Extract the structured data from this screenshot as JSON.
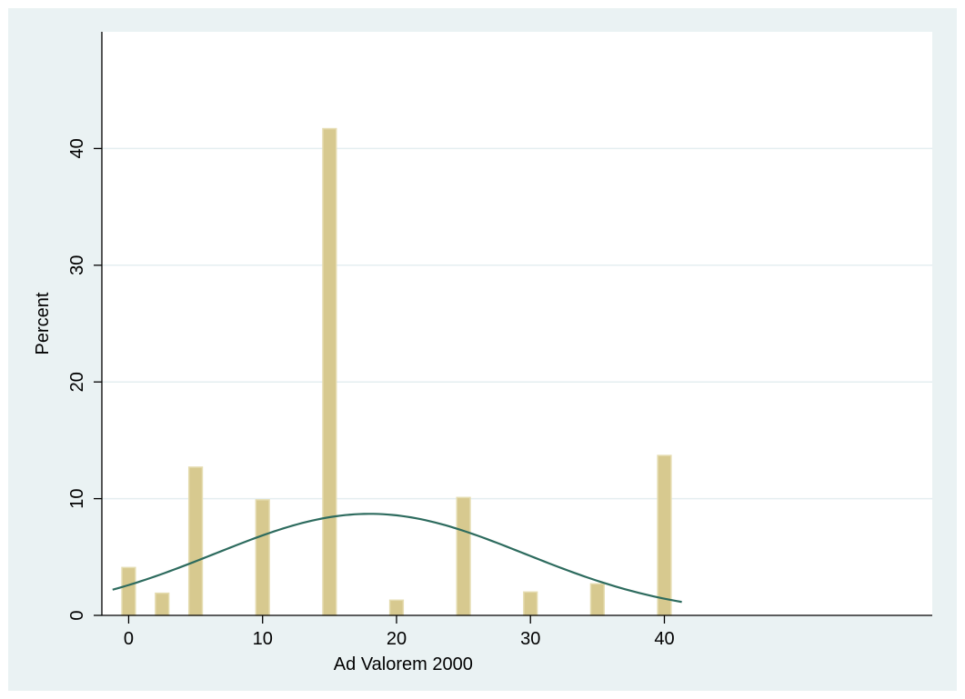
{
  "chart_data": {
    "type": "bar",
    "title": "",
    "xlabel": "Ad Valorem 2000",
    "ylabel": "Percent",
    "xlim": [
      -2,
      60
    ],
    "ylim": [
      0,
      50
    ],
    "x_ticks": [
      0,
      10,
      20,
      30,
      40
    ],
    "y_ticks": [
      0,
      10,
      20,
      30,
      40
    ],
    "grid": true,
    "legend": "none",
    "bar_width": 1.0,
    "bars": [
      {
        "x": 0,
        "value": 4.1
      },
      {
        "x": 2.5,
        "value": 1.9
      },
      {
        "x": 5,
        "value": 12.7
      },
      {
        "x": 10,
        "value": 9.9
      },
      {
        "x": 15,
        "value": 41.7
      },
      {
        "x": 20,
        "value": 1.3
      },
      {
        "x": 25,
        "value": 10.1
      },
      {
        "x": 30,
        "value": 2.0
      },
      {
        "x": 35,
        "value": 2.7
      },
      {
        "x": 40,
        "value": 13.7
      }
    ],
    "density_curve": {
      "type": "normal",
      "x_range": [
        -1.2,
        41.3
      ],
      "points": [
        {
          "x": -1.2,
          "y": 2.2
        },
        {
          "x": 0,
          "y": 2.7
        },
        {
          "x": 5,
          "y": 4.8
        },
        {
          "x": 10,
          "y": 7.0
        },
        {
          "x": 15,
          "y": 8.5
        },
        {
          "x": 18,
          "y": 8.7
        },
        {
          "x": 20,
          "y": 8.5
        },
        {
          "x": 25,
          "y": 7.1
        },
        {
          "x": 30,
          "y": 5.0
        },
        {
          "x": 35,
          "y": 2.7
        },
        {
          "x": 41.3,
          "y": 1.1
        }
      ]
    },
    "colors": {
      "background": "#eaf2f3",
      "plot_background": "#ffffff",
      "bar_fill": "#d7c98f",
      "bar_stroke": "#e5dcb0",
      "curve": "#2d6b5e",
      "grid": "#e4eef0",
      "axis": "#000000"
    }
  }
}
